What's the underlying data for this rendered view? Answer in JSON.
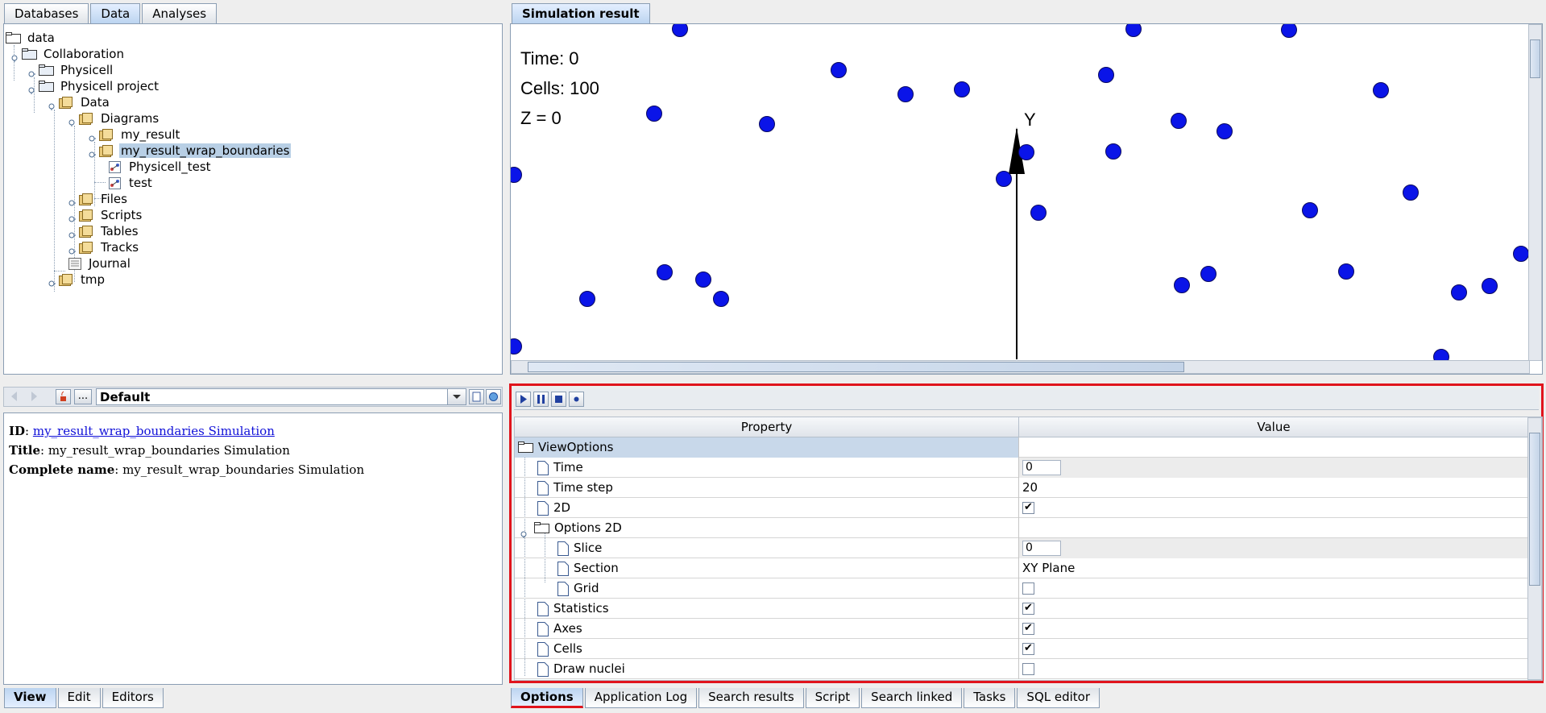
{
  "top_tabs": [
    "Databases",
    "Data",
    "Analyses"
  ],
  "tree": {
    "root": "data",
    "items": [
      {
        "label": "Collaboration"
      },
      {
        "label": "Physicell"
      },
      {
        "label": "Physicell project"
      },
      {
        "label": "Data"
      },
      {
        "label": "Diagrams"
      },
      {
        "label": "my_result"
      },
      {
        "label": "my_result_wrap_boundaries"
      },
      {
        "label": "Physicell_test"
      },
      {
        "label": "test"
      },
      {
        "label": "Files"
      },
      {
        "label": "Scripts"
      },
      {
        "label": "Tables"
      },
      {
        "label": "Tracks"
      },
      {
        "label": "Journal"
      },
      {
        "label": "tmp"
      }
    ]
  },
  "info_toolbar": {
    "ellipsis": "...",
    "selector_value": "Default"
  },
  "info": {
    "id_label": "ID",
    "id_value": "my_result_wrap_boundaries Simulation",
    "title_label": "Title",
    "title_value": "my_result_wrap_boundaries Simulation",
    "complete_label": "Complete name",
    "complete_value": "my_result_wrap_boundaries Simulation"
  },
  "left_bottom_tabs": [
    "View",
    "Edit",
    "Editors"
  ],
  "simulation": {
    "tab": "Simulation result",
    "time": "Time: 0",
    "cells": "Cells: 100",
    "z": "Z = 0",
    "axis_label": "Y"
  },
  "properties": {
    "col_property": "Property",
    "col_value": "Value",
    "rows": [
      {
        "name": "ViewOptions",
        "value": ""
      },
      {
        "name": "Time",
        "value": "0"
      },
      {
        "name": "Time step",
        "value": "20"
      },
      {
        "name": "2D",
        "value": "checked"
      },
      {
        "name": "Options 2D",
        "value": ""
      },
      {
        "name": "Slice",
        "value": "0"
      },
      {
        "name": "Section",
        "value": "XY Plane"
      },
      {
        "name": "Grid",
        "value": "unchecked"
      },
      {
        "name": "Statistics",
        "value": "checked"
      },
      {
        "name": "Axes",
        "value": "checked"
      },
      {
        "name": "Cells",
        "value": "checked"
      },
      {
        "name": "Draw nuclei",
        "value": "unchecked"
      }
    ]
  },
  "bottom_tabs": [
    "Options",
    "Application Log",
    "Search results",
    "Script",
    "Search linked",
    "Tasks",
    "SQL editor"
  ],
  "colors": {
    "cell_fill": "#0a14e8",
    "highlight_border": "#e0141c",
    "selection": "#b8cfe5"
  },
  "icons": [
    "play-icon",
    "pause-icon",
    "stop-icon",
    "record-icon",
    "back-icon",
    "forward-icon",
    "java-icon",
    "pin-icon",
    "refresh-icon"
  ]
}
